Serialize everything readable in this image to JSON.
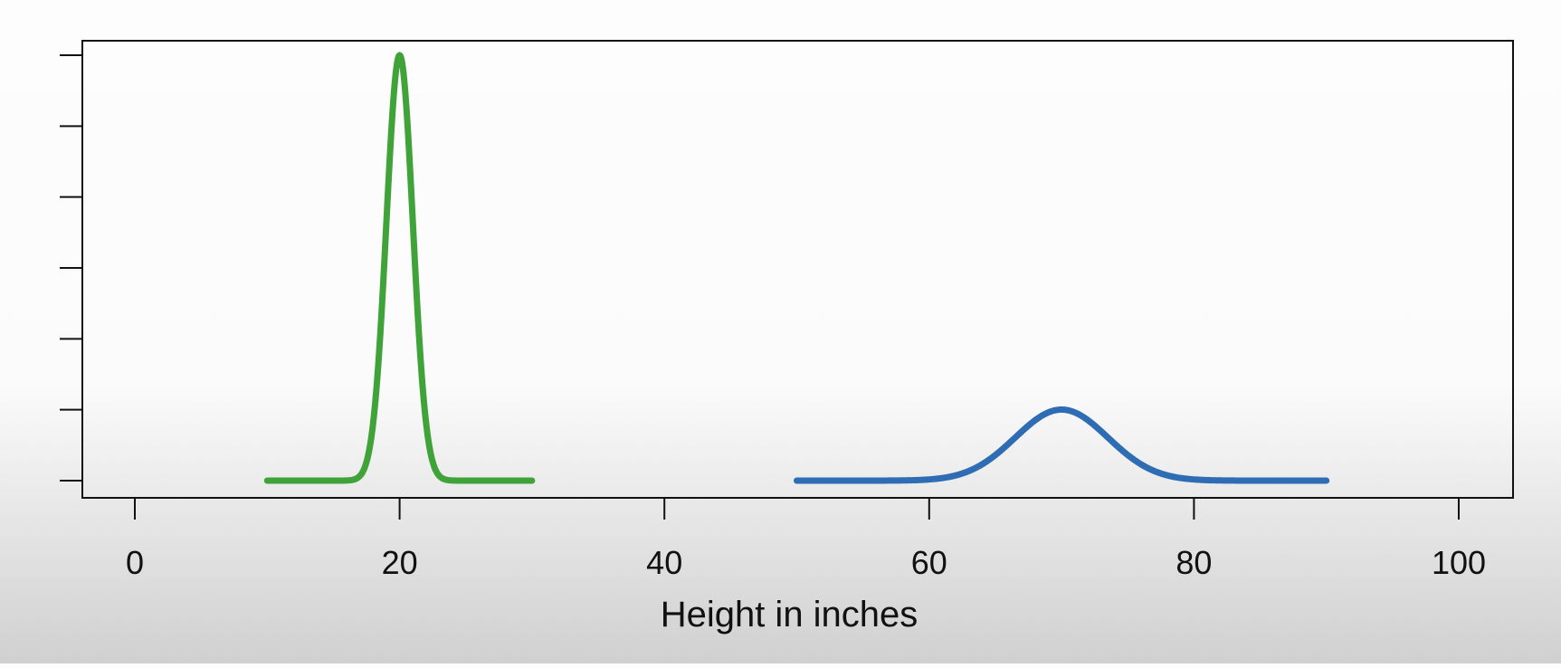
{
  "chart_data": {
    "type": "line",
    "title": "",
    "xlabel": "Height in inches",
    "ylabel": "",
    "xlim": [
      0,
      100
    ],
    "x_ticks": [
      "0",
      "20",
      "40",
      "60",
      "80",
      "100"
    ],
    "y_tick_count": 7,
    "grid": false,
    "legend": "none",
    "series": [
      {
        "color": "#3fa33a",
        "mean": 20,
        "sd": 1,
        "x_range": [
          10,
          30
        ],
        "relative_peak": 1.0
      },
      {
        "color": "#2e6db4",
        "mean": 70,
        "sd": 3.5,
        "x_range": [
          50,
          90
        ],
        "relative_peak": 0.167
      }
    ]
  }
}
